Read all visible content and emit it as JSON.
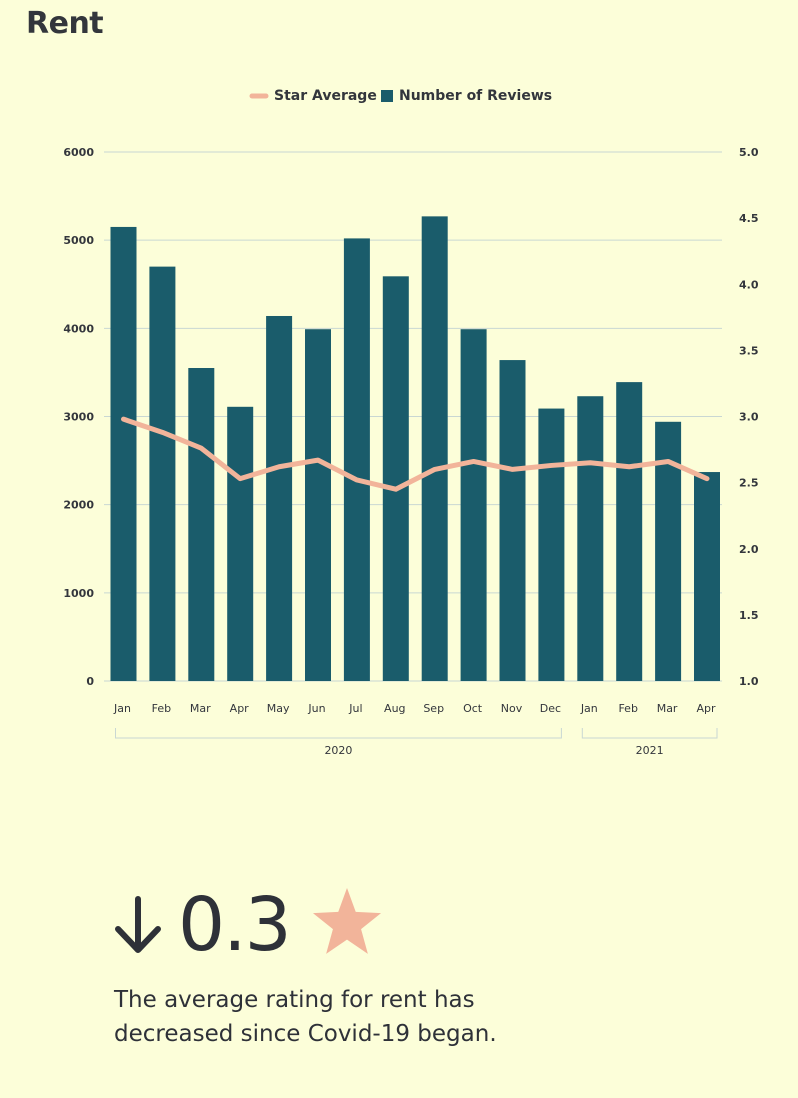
{
  "header": {
    "title": "Rent"
  },
  "colors": {
    "background": "#fcfed9",
    "bars": "#1a5c6b",
    "line": "#f2b49a",
    "grid": "#c9d7d3",
    "text": "#33363c"
  },
  "chart_data": {
    "type": "bar",
    "categories": [
      "Jan",
      "Feb",
      "Mar",
      "Apr",
      "May",
      "Jun",
      "Jul",
      "Aug",
      "Sep",
      "Oct",
      "Nov",
      "Dec",
      "Jan",
      "Feb",
      "Mar",
      "Apr"
    ],
    "groups": [
      {
        "label": "2020",
        "from": 0,
        "to": 11
      },
      {
        "label": "2021",
        "from": 12,
        "to": 15
      }
    ],
    "series": [
      {
        "name": "Star Average",
        "type": "line",
        "axis": "right",
        "values": [
          2.98,
          2.88,
          2.76,
          2.53,
          2.62,
          2.67,
          2.52,
          2.45,
          2.6,
          2.66,
          2.6,
          2.63,
          2.65,
          2.62,
          2.66,
          2.53
        ]
      },
      {
        "name": "Number of Reviews",
        "type": "bar",
        "axis": "left",
        "values": [
          5150,
          4700,
          3550,
          3110,
          4140,
          3990,
          5020,
          4590,
          5270,
          3990,
          3640,
          3090,
          3230,
          3390,
          2940,
          2370
        ]
      }
    ],
    "y_left": {
      "min": 0,
      "max": 6000,
      "ticks": [
        "0",
        "1000",
        "2000",
        "3000",
        "4000",
        "5000",
        "6000"
      ]
    },
    "y_right": {
      "min": 1.0,
      "max": 5.0,
      "ticks": [
        "1.0",
        "1.5",
        "2.0",
        "2.5",
        "3.0",
        "3.5",
        "4.0",
        "4.5",
        "5.0"
      ]
    },
    "legend": "top-center",
    "grid": true
  },
  "stat": {
    "arrow": "down-arrow-icon",
    "value": "0.3",
    "star": "star-icon",
    "caption": "The average rating for rent has decreased since Covid-19 began."
  }
}
